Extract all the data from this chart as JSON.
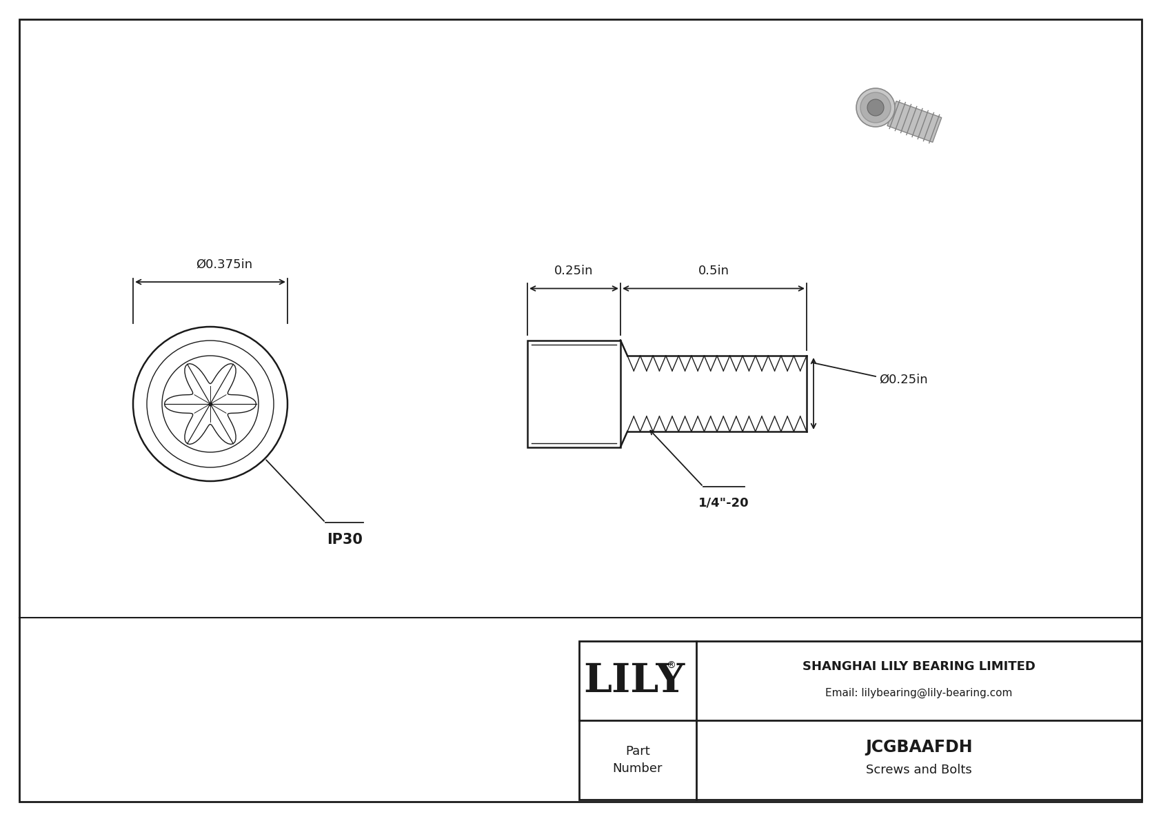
{
  "bg_color": "#f2f2f2",
  "line_color": "#1a1a1a",
  "border_color": "#1a1a1a",
  "title": "JCGBAAFDH",
  "subtitle": "Screws and Bolts",
  "company": "SHANGHAI LILY BEARING LIMITED",
  "email": "Email: lilybearing@lily-bearing.com",
  "part_label": "Part\nNumber",
  "dim_head_len": "0.25in",
  "dim_thread_len": "0.5in",
  "dim_head_dia": "Ø0.375in",
  "dim_thread_dia": "Ø0.25in",
  "thread_label": "1/4\"-20",
  "torx_label": "IP30",
  "white": "#ffffff"
}
